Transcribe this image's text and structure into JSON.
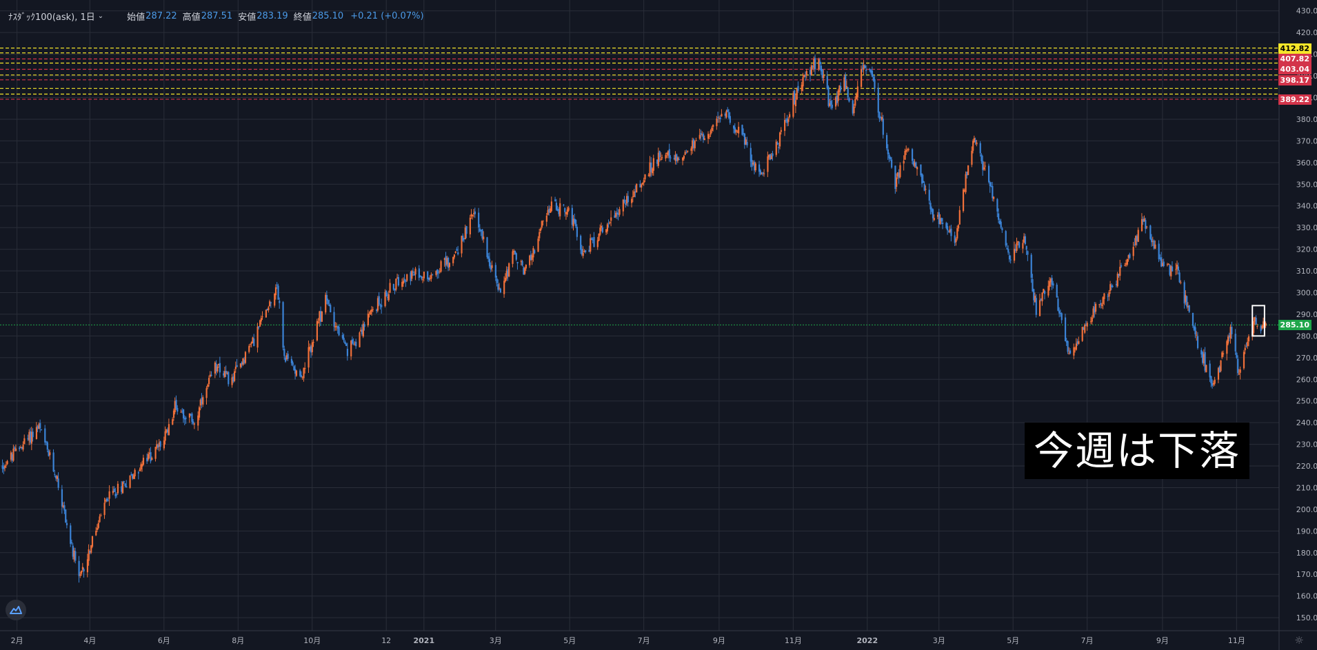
{
  "header": {
    "symbol": "ﾅｽﾀﾞｯｸ100(ask), 1日",
    "open_label": "始値",
    "open_value": "287.22",
    "high_label": "高値",
    "high_value": "287.51",
    "low_label": "安値",
    "low_value": "283.19",
    "close_label": "終値",
    "close_value": "285.10",
    "change": "+0.21 (+0.07%)"
  },
  "annotation_text": "今週は下落",
  "colors": {
    "background": "#131722",
    "up": "#f0703a",
    "down": "#3b83d6",
    "yellow_line": "#f5e62a",
    "red_line": "#d3344a",
    "current_line": "#1fa64a"
  },
  "icons": {
    "logo": "mountain-logo-icon",
    "settings": "gear-icon"
  },
  "chart_data": {
    "type": "candlestick",
    "title": "",
    "xlabel": "",
    "ylabel": "",
    "ylim": [
      144,
      435
    ],
    "yticks": [
      150,
      160,
      170,
      180,
      190,
      200,
      210,
      220,
      230,
      240,
      250,
      260,
      270,
      280,
      290,
      300,
      310,
      320,
      330,
      340,
      350,
      360,
      370,
      380,
      390,
      400,
      410,
      420,
      430
    ],
    "x_ticks": [
      {
        "label": "2月",
        "date": "2020-02-01"
      },
      {
        "label": "4月",
        "date": "2020-04-01"
      },
      {
        "label": "6月",
        "date": "2020-06-01"
      },
      {
        "label": "8月",
        "date": "2020-08-01"
      },
      {
        "label": "10月",
        "date": "2020-10-01"
      },
      {
        "label": "12",
        "date": "2020-12-01"
      },
      {
        "label": "2021",
        "date": "2021-01-01"
      },
      {
        "label": "3月",
        "date": "2021-03-01"
      },
      {
        "label": "5月",
        "date": "2021-05-01"
      },
      {
        "label": "7月",
        "date": "2021-07-01"
      },
      {
        "label": "9月",
        "date": "2021-09-01"
      },
      {
        "label": "11月",
        "date": "2021-11-01"
      },
      {
        "label": "2022",
        "date": "2022-01-01"
      },
      {
        "label": "3月",
        "date": "2022-03-01"
      },
      {
        "label": "5月",
        "date": "2022-05-01"
      },
      {
        "label": "7月",
        "date": "2022-07-01"
      },
      {
        "label": "9月",
        "date": "2022-09-01"
      },
      {
        "label": "11月",
        "date": "2022-11-01"
      }
    ],
    "price_path": [
      [
        "2020-01-20",
        220
      ],
      [
        "2020-02-19",
        238
      ],
      [
        "2020-03-05",
        214
      ],
      [
        "2020-03-16",
        185
      ],
      [
        "2020-03-23",
        167
      ],
      [
        "2020-04-15",
        205
      ],
      [
        "2020-05-05",
        215
      ],
      [
        "2020-06-01",
        232
      ],
      [
        "2020-06-10",
        248
      ],
      [
        "2020-06-26",
        240
      ],
      [
        "2020-07-15",
        268
      ],
      [
        "2020-07-25",
        258
      ],
      [
        "2020-08-15",
        280
      ],
      [
        "2020-09-02",
        304
      ],
      [
        "2020-09-08",
        270
      ],
      [
        "2020-09-23",
        262
      ],
      [
        "2020-10-12",
        297
      ],
      [
        "2020-10-30",
        272
      ],
      [
        "2020-11-20",
        292
      ],
      [
        "2020-12-15",
        308
      ],
      [
        "2021-01-05",
        308
      ],
      [
        "2021-01-25",
        316
      ],
      [
        "2021-02-12",
        337
      ],
      [
        "2021-03-04",
        300
      ],
      [
        "2021-03-15",
        318
      ],
      [
        "2021-03-25",
        310
      ],
      [
        "2021-04-15",
        340
      ],
      [
        "2021-04-30",
        338
      ],
      [
        "2021-05-12",
        318
      ],
      [
        "2021-06-01",
        332
      ],
      [
        "2021-07-01",
        352
      ],
      [
        "2021-07-15",
        365
      ],
      [
        "2021-07-25",
        360
      ],
      [
        "2021-08-15",
        370
      ],
      [
        "2021-09-07",
        383
      ],
      [
        "2021-09-20",
        372
      ],
      [
        "2021-10-04",
        354
      ],
      [
        "2021-10-20",
        370
      ],
      [
        "2021-11-05",
        395
      ],
      [
        "2021-11-22",
        408
      ],
      [
        "2021-12-03",
        382
      ],
      [
        "2021-12-12",
        400
      ],
      [
        "2021-12-20",
        382
      ],
      [
        "2021-12-28",
        406
      ],
      [
        "2022-01-05",
        398
      ],
      [
        "2022-01-24",
        350
      ],
      [
        "2022-02-02",
        368
      ],
      [
        "2022-02-24",
        337
      ],
      [
        "2022-03-14",
        323
      ],
      [
        "2022-03-29",
        372
      ],
      [
        "2022-04-12",
        350
      ],
      [
        "2022-04-28",
        315
      ],
      [
        "2022-05-10",
        325
      ],
      [
        "2022-05-20",
        293
      ],
      [
        "2022-06-01",
        308
      ],
      [
        "2022-06-16",
        272
      ],
      [
        "2022-07-05",
        290
      ],
      [
        "2022-08-01",
        312
      ],
      [
        "2022-08-16",
        334
      ],
      [
        "2022-09-01",
        313
      ],
      [
        "2022-09-13",
        310
      ],
      [
        "2022-09-30",
        276
      ],
      [
        "2022-10-13",
        257
      ],
      [
        "2022-10-27",
        283
      ],
      [
        "2022-11-03",
        263
      ],
      [
        "2022-11-10",
        279
      ],
      [
        "2022-11-15",
        287
      ],
      [
        "2022-11-25",
        285
      ]
    ],
    "horizontal_levels": [
      {
        "value": 412.82,
        "color": "#f5e62a",
        "label": "412.82",
        "label_bg": "#f5e62a",
        "label_color": "#000000"
      },
      {
        "value": 410.6,
        "color": "#f5e62a"
      },
      {
        "value": 407.82,
        "color": "#d3344a",
        "label": "407.82",
        "label_bg": "#d3344a",
        "label_color": "#ffffff"
      },
      {
        "value": 405.9,
        "color": "#f5e62a"
      },
      {
        "value": 403.04,
        "color": "#d3344a",
        "label": "403.04",
        "label_bg": "#d3344a",
        "label_color": "#ffffff"
      },
      {
        "value": 400.4,
        "color": "#f5e62a"
      },
      {
        "value": 398.17,
        "color": "#d3344a",
        "label": "398.17",
        "label_bg": "#d3344a",
        "label_color": "#ffffff"
      },
      {
        "value": 394.2,
        "color": "#f5e62a"
      },
      {
        "value": 391.6,
        "color": "#f5e62a"
      },
      {
        "value": 389.22,
        "color": "#d3344a",
        "label": "389.22",
        "label_bg": "#d3344a",
        "label_color": "#ffffff"
      }
    ],
    "current_price": {
      "value": 285.1,
      "label": "285.10",
      "color": "#1fa64a"
    },
    "highlight_box": {
      "x0": "2022-11-14",
      "x1": "2022-11-24",
      "y0": 280,
      "y1": 294
    }
  }
}
